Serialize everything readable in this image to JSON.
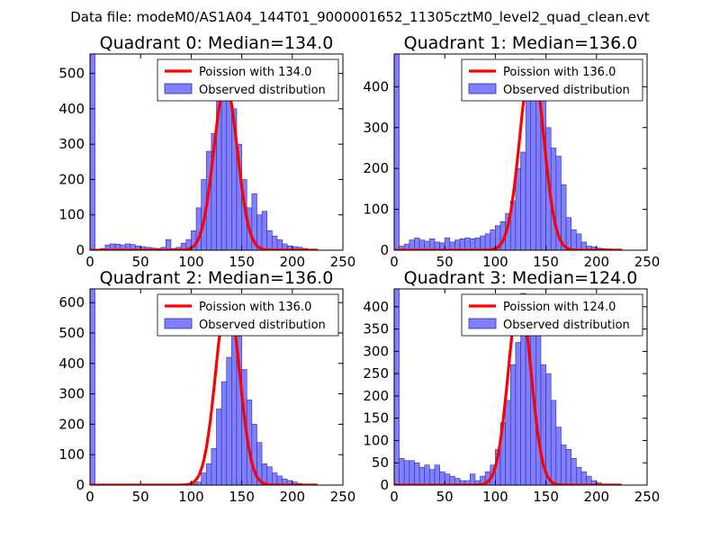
{
  "figure": {
    "suptitle": "Data file: modeM0/AS1A04_144T01_9000001652_11305cztM0_level2_quad_clean.evt",
    "colors": {
      "hist_fill": "#7f7fff",
      "hist_edge": "#2f2f9f",
      "model_line": "#ff0000",
      "axes": "#000000",
      "background": "#ffffff"
    }
  },
  "chart_data": [
    {
      "type": "bar",
      "title": "Quadrant 0: Median=134.0",
      "xlim": [
        0,
        250
      ],
      "ylim": [
        0,
        555
      ],
      "xticks": [
        "0",
        "50",
        "100",
        "150",
        "200",
        "250"
      ],
      "yticks": [
        "0",
        "100",
        "200",
        "300",
        "400",
        "500"
      ],
      "ytick_values": [
        0,
        100,
        200,
        300,
        400,
        500
      ],
      "legend": [
        "Poission with 134.0",
        "Observed distribution"
      ],
      "hist": {
        "bin_width": 5,
        "bin_starts": [
          0,
          5,
          10,
          15,
          20,
          25,
          30,
          35,
          40,
          45,
          50,
          55,
          60,
          65,
          70,
          75,
          80,
          85,
          90,
          95,
          100,
          105,
          110,
          115,
          120,
          125,
          130,
          135,
          140,
          145,
          150,
          155,
          160,
          165,
          170,
          175,
          180,
          185,
          190,
          195,
          200,
          205,
          210,
          215,
          220
        ],
        "counts": [
          555,
          2,
          5,
          15,
          18,
          17,
          15,
          18,
          16,
          12,
          10,
          8,
          6,
          5,
          8,
          30,
          5,
          8,
          20,
          30,
          55,
          120,
          200,
          280,
          330,
          430,
          480,
          500,
          400,
          300,
          200,
          120,
          160,
          100,
          110,
          55,
          40,
          30,
          18,
          12,
          10,
          8,
          5,
          3,
          2
        ]
      },
      "model": {
        "name": "Poission with 134.0",
        "mean": 134.0,
        "peak": 470
      }
    },
    {
      "type": "bar",
      "title": "Quadrant 1: Median=136.0",
      "xlim": [
        0,
        250
      ],
      "ylim": [
        0,
        480
      ],
      "xticks": [
        "0",
        "50",
        "100",
        "150",
        "200",
        "250"
      ],
      "yticks": [
        "0",
        "100",
        "200",
        "300",
        "400"
      ],
      "ytick_values": [
        0,
        100,
        200,
        300,
        400
      ],
      "legend": [
        "Poission with 136.0",
        "Observed distribution"
      ],
      "hist": {
        "bin_width": 5,
        "bin_starts": [
          0,
          5,
          10,
          15,
          20,
          25,
          30,
          35,
          40,
          45,
          50,
          55,
          60,
          65,
          70,
          75,
          80,
          85,
          90,
          95,
          100,
          105,
          110,
          115,
          120,
          125,
          130,
          135,
          140,
          145,
          150,
          155,
          160,
          165,
          170,
          175,
          180,
          185,
          190,
          195,
          200,
          205,
          210,
          215,
          220
        ],
        "counts": [
          480,
          10,
          15,
          25,
          30,
          25,
          22,
          28,
          20,
          18,
          30,
          20,
          25,
          28,
          30,
          28,
          30,
          35,
          40,
          50,
          60,
          70,
          90,
          120,
          200,
          240,
          380,
          450,
          460,
          420,
          300,
          250,
          230,
          160,
          80,
          50,
          40,
          20,
          10,
          8,
          5,
          4,
          3,
          2,
          2
        ]
      },
      "model": {
        "name": "Poission with 136.0",
        "mean": 136.0,
        "peak": 465
      }
    },
    {
      "type": "bar",
      "title": "Quadrant 2: Median=136.0",
      "xlim": [
        0,
        250
      ],
      "ylim": [
        0,
        645
      ],
      "xticks": [
        "0",
        "50",
        "100",
        "150",
        "200",
        "250"
      ],
      "yticks": [
        "0",
        "100",
        "200",
        "300",
        "400",
        "500",
        "600"
      ],
      "ytick_values": [
        0,
        100,
        200,
        300,
        400,
        500,
        600
      ],
      "legend": [
        "Poission with 136.0",
        "Observed distribution"
      ],
      "hist": {
        "bin_width": 5,
        "bin_starts": [
          0,
          5,
          10,
          15,
          20,
          25,
          30,
          35,
          40,
          45,
          50,
          55,
          60,
          65,
          70,
          75,
          80,
          85,
          90,
          95,
          100,
          105,
          110,
          115,
          120,
          125,
          130,
          135,
          140,
          145,
          150,
          155,
          160,
          165,
          170,
          175,
          180,
          185,
          190,
          195,
          200,
          205,
          210,
          215
        ],
        "counts": [
          645,
          0,
          0,
          0,
          0,
          0,
          0,
          0,
          0,
          0,
          0,
          0,
          0,
          0,
          0,
          0,
          0,
          0,
          0,
          0,
          5,
          10,
          40,
          70,
          120,
          250,
          340,
          420,
          580,
          490,
          380,
          280,
          200,
          140,
          70,
          60,
          40,
          30,
          20,
          15,
          10,
          5,
          3,
          2
        ]
      },
      "model": {
        "name": "Poission with 136.0",
        "mean": 136.0,
        "peak": 620
      }
    },
    {
      "type": "bar",
      "title": "Quadrant 3: Median=124.0",
      "xlim": [
        0,
        250
      ],
      "ylim": [
        0,
        440
      ],
      "xticks": [
        "0",
        "50",
        "100",
        "150",
        "200",
        "250"
      ],
      "yticks": [
        "0",
        "50",
        "100",
        "150",
        "200",
        "250",
        "300",
        "350",
        "400"
      ],
      "ytick_values": [
        0,
        50,
        100,
        150,
        200,
        250,
        300,
        350,
        400
      ],
      "legend": [
        "Poission with 124.0",
        "Observed distribution"
      ],
      "hist": {
        "bin_width": 5,
        "bin_starts": [
          0,
          5,
          10,
          15,
          20,
          25,
          30,
          35,
          40,
          45,
          50,
          55,
          60,
          65,
          70,
          75,
          80,
          85,
          90,
          95,
          100,
          105,
          110,
          115,
          120,
          125,
          130,
          135,
          140,
          145,
          150,
          155,
          160,
          165,
          170,
          175,
          180,
          185,
          190,
          195,
          200
        ],
        "counts": [
          440,
          60,
          55,
          55,
          50,
          40,
          45,
          35,
          45,
          30,
          25,
          20,
          15,
          10,
          10,
          25,
          10,
          20,
          30,
          45,
          80,
          140,
          190,
          270,
          320,
          430,
          400,
          390,
          340,
          270,
          250,
          190,
          130,
          90,
          80,
          60,
          40,
          30,
          20,
          10,
          5
        ]
      },
      "model": {
        "name": "Poission with 124.0",
        "mean": 124.0,
        "peak": 425
      }
    }
  ]
}
